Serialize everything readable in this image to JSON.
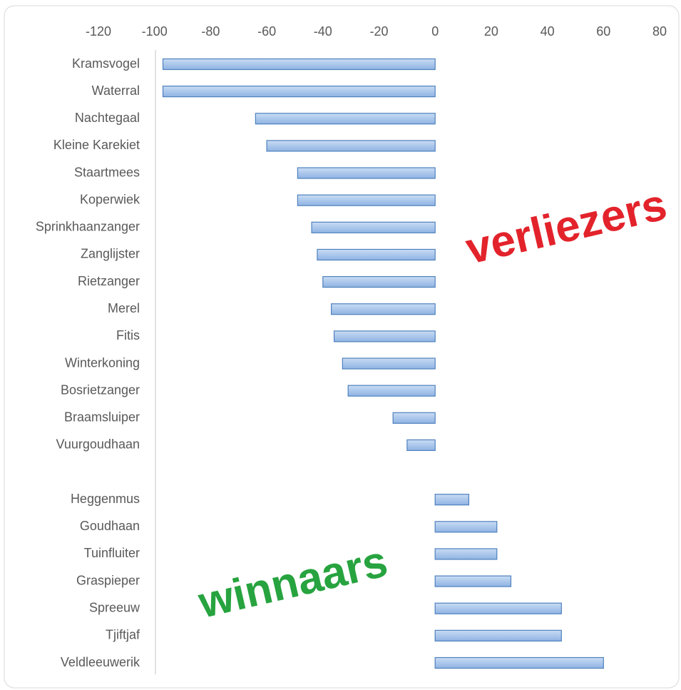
{
  "chart_data": {
    "type": "barh",
    "categories": [
      "Kramsvogel",
      "Waterral",
      "Nachtegaal",
      "Kleine Karekiet",
      "Staartmees",
      "Koperwiek",
      "Sprinkhaanzanger",
      "Zanglijster",
      "Rietzanger",
      "Merel",
      "Fitis",
      "Winterkoning",
      "Bosrietzanger",
      "Braamsluiper",
      "Vuurgoudhaan",
      null,
      "Heggenmus",
      "Goudhaan",
      "Tuinfluiter",
      "Graspieper",
      "Spreeuw",
      "Tjiftjaf",
      "Veldleeuwerik"
    ],
    "values": [
      -97,
      -97,
      -64,
      -60,
      -49,
      -49,
      -44,
      -42,
      -40,
      -37,
      -36,
      -33,
      -31,
      -15,
      -10,
      null,
      12,
      22,
      22,
      27,
      45,
      45,
      60
    ],
    "color": "#a9c6ec",
    "edge_color": "#4f81bd",
    "xlim": [
      -120,
      80
    ],
    "xticks": [
      -120,
      -100,
      -80,
      -60,
      -40,
      -20,
      0,
      20,
      40,
      60,
      80
    ],
    "annotations": [
      {
        "text": "verliezers",
        "color": "#e3232b"
      },
      {
        "text": "winnaars",
        "color": "#27a33f"
      }
    ]
  }
}
